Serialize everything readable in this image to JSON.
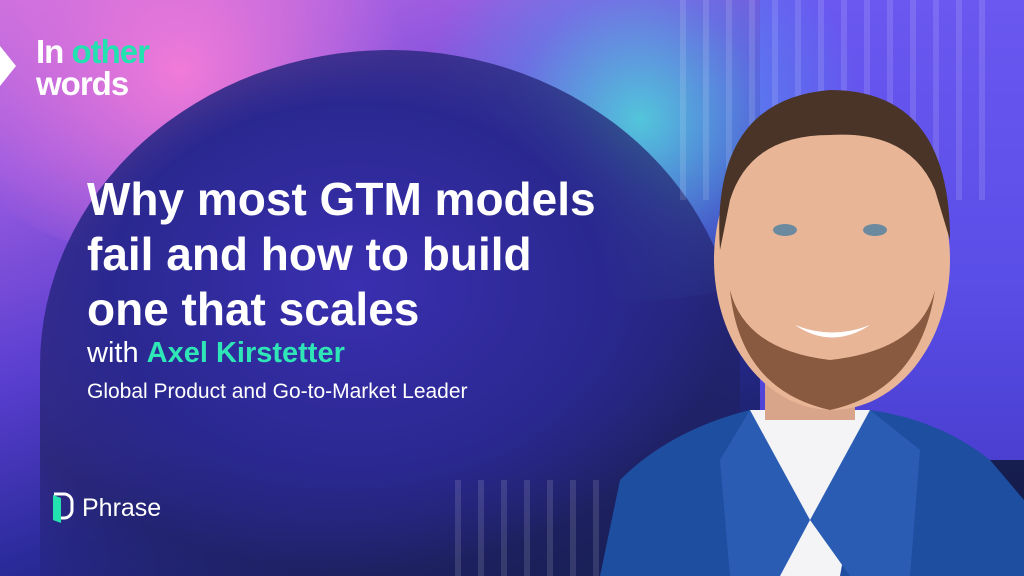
{
  "brand_series": {
    "line1_white": "In",
    "line1_green": "other",
    "line2": "words"
  },
  "title_lines": [
    "Why most GTM models",
    "fail and how to build",
    "one that scales"
  ],
  "speaker": {
    "prefix": "with",
    "name": "Axel Kirstetter",
    "role": "Global Product and Go-to-Market Leader"
  },
  "logo": {
    "text": "Phrase",
    "icon": "phrase-logo-icon"
  },
  "colors": {
    "accent": "#2ee6b6",
    "background_dark": "#141a40",
    "background_purple": "#5a3fd0"
  }
}
